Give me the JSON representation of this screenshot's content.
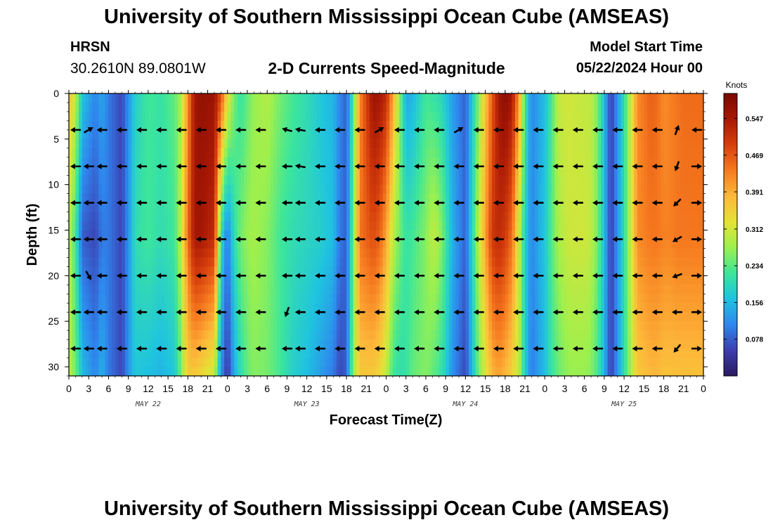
{
  "header": {
    "title": "University of Southern Mississippi Ocean Cube (AMSEAS)",
    "footer_title": "University of Southern Mississippi Ocean Cube (AMSEAS)",
    "station_code": "HRSN",
    "station_coords": "30.2610N  89.0801W",
    "plot_title": "2-D Currents Speed-Magnitude",
    "start_label": "Model Start Time",
    "start_value": "05/22/2024 Hour 00"
  },
  "colors": {
    "colormap": [
      "#2b1a5e",
      "#3c3eb0",
      "#2f86ee",
      "#1fc3e0",
      "#3de69a",
      "#9cf04e",
      "#e5e235",
      "#fdb83a",
      "#f67a1f",
      "#d63f0c",
      "#a81805",
      "#790900"
    ],
    "arrow": "#000000"
  },
  "chart_data": {
    "type": "heatmap",
    "title": "2-D Currents Speed-Magnitude",
    "xlabel": "Forecast Time(Z)",
    "ylabel": "Depth (ft)",
    "units": "Knots",
    "xlim": [
      0,
      96
    ],
    "ylim": [
      0,
      31
    ],
    "x_tick_values": [
      0,
      3,
      6,
      9,
      12,
      15,
      18,
      21,
      24,
      27,
      30,
      33,
      36,
      39,
      42,
      45,
      48,
      51,
      54,
      57,
      60,
      63,
      66,
      69,
      72,
      75,
      78,
      81,
      84,
      87,
      90,
      93,
      96
    ],
    "x_tick_labels": [
      "0",
      "3",
      "6",
      "9",
      "12",
      "15",
      "18",
      "21",
      "0",
      "3",
      "6",
      "9",
      "12",
      "15",
      "18",
      "21",
      "0",
      "3",
      "6",
      "9",
      "12",
      "15",
      "18",
      "21",
      "0",
      "3",
      "6",
      "9",
      "12",
      "15",
      "18",
      "21",
      "0"
    ],
    "day_labels": [
      {
        "hour": 12,
        "label": "MAY 22"
      },
      {
        "hour": 36,
        "label": "MAY 23"
      },
      {
        "hour": 60,
        "label": "MAY 24"
      },
      {
        "hour": 84,
        "label": "MAY 25"
      }
    ],
    "y_tick_values": [
      0,
      5,
      10,
      15,
      20,
      25,
      30
    ],
    "y_tick_labels": [
      "0",
      "5",
      "10",
      "15",
      "20",
      "25",
      "30"
    ],
    "colorbar": {
      "min": 0.0,
      "max": 0.6,
      "tick_values": [
        0.078,
        0.156,
        0.234,
        0.312,
        0.391,
        0.469,
        0.547
      ],
      "tick_labels": [
        "0.078",
        "0.156",
        "0.234",
        "0.312",
        "0.391",
        "0.469",
        "0.547"
      ]
    },
    "speed_profile": {
      "description": "Current speed (knots) by forecast hour at top / middle / bottom depth",
      "hours": [
        0,
        1,
        2,
        4,
        5,
        6,
        8,
        9,
        10,
        12,
        14,
        16,
        17,
        18,
        19,
        20,
        22,
        23,
        24,
        25,
        26,
        27,
        28,
        30,
        32,
        34,
        36,
        38,
        40,
        41,
        42,
        43,
        44,
        46,
        47,
        48,
        49,
        50,
        51,
        52,
        54,
        55,
        56,
        57,
        58,
        60,
        62,
        64,
        65,
        66,
        67,
        68,
        69,
        70,
        72,
        73,
        74,
        75,
        76,
        78,
        79,
        80,
        81,
        82,
        84,
        86,
        88,
        89,
        90,
        91,
        92,
        93,
        94,
        95,
        96
      ],
      "top": [
        0.37,
        0.3,
        0.17,
        0.11,
        0.14,
        0.1,
        0.06,
        0.12,
        0.18,
        0.22,
        0.21,
        0.24,
        0.28,
        0.42,
        0.55,
        0.57,
        0.56,
        0.48,
        0.34,
        0.25,
        0.21,
        0.24,
        0.27,
        0.29,
        0.25,
        0.22,
        0.2,
        0.17,
        0.15,
        0.11,
        0.08,
        0.22,
        0.42,
        0.56,
        0.55,
        0.52,
        0.4,
        0.27,
        0.14,
        0.15,
        0.22,
        0.21,
        0.2,
        0.17,
        0.13,
        0.08,
        0.26,
        0.46,
        0.55,
        0.58,
        0.55,
        0.42,
        0.22,
        0.11,
        0.16,
        0.22,
        0.3,
        0.31,
        0.31,
        0.3,
        0.3,
        0.25,
        0.16,
        0.05,
        0.2,
        0.42,
        0.46,
        0.45,
        0.42,
        0.43,
        0.44,
        0.45,
        0.45,
        0.45,
        0.45
      ],
      "mid": [
        0.3,
        0.22,
        0.08,
        0.06,
        0.1,
        0.1,
        0.06,
        0.12,
        0.2,
        0.22,
        0.2,
        0.22,
        0.3,
        0.45,
        0.55,
        0.55,
        0.52,
        0.2,
        0.1,
        0.2,
        0.25,
        0.27,
        0.28,
        0.26,
        0.22,
        0.2,
        0.19,
        0.18,
        0.16,
        0.1,
        0.08,
        0.24,
        0.44,
        0.48,
        0.46,
        0.4,
        0.3,
        0.25,
        0.21,
        0.22,
        0.26,
        0.3,
        0.28,
        0.22,
        0.15,
        0.08,
        0.3,
        0.5,
        0.52,
        0.5,
        0.45,
        0.32,
        0.18,
        0.11,
        0.17,
        0.23,
        0.28,
        0.3,
        0.31,
        0.31,
        0.3,
        0.25,
        0.16,
        0.05,
        0.2,
        0.42,
        0.44,
        0.44,
        0.43,
        0.43,
        0.44,
        0.44,
        0.44,
        0.44,
        0.44
      ],
      "bottom": [
        0.3,
        0.25,
        0.16,
        0.11,
        0.15,
        0.1,
        0.06,
        0.12,
        0.17,
        0.16,
        0.15,
        0.17,
        0.25,
        0.36,
        0.36,
        0.34,
        0.3,
        0.12,
        0.04,
        0.14,
        0.2,
        0.24,
        0.26,
        0.25,
        0.22,
        0.18,
        0.16,
        0.13,
        0.1,
        0.06,
        0.08,
        0.26,
        0.36,
        0.36,
        0.34,
        0.3,
        0.22,
        0.2,
        0.21,
        0.24,
        0.26,
        0.24,
        0.22,
        0.18,
        0.12,
        0.06,
        0.25,
        0.38,
        0.4,
        0.38,
        0.35,
        0.3,
        0.18,
        0.1,
        0.16,
        0.21,
        0.24,
        0.26,
        0.27,
        0.27,
        0.26,
        0.22,
        0.15,
        0.05,
        0.2,
        0.36,
        0.38,
        0.38,
        0.37,
        0.37,
        0.37,
        0.37,
        0.37,
        0.37,
        0.37
      ]
    },
    "vectors": {
      "description": "Current direction vectors (degrees, math convention; 180 = westward) at each forecast hour and depth",
      "depths": [
        4,
        8,
        12,
        16,
        20,
        24,
        28
      ],
      "hours": [
        1,
        3,
        5,
        8,
        11,
        14,
        17,
        20,
        23,
        26,
        29,
        33,
        35,
        38,
        41,
        44,
        47,
        50,
        53,
        56,
        59,
        62,
        65,
        68,
        71,
        74,
        77,
        80,
        83,
        86,
        89,
        92,
        95
      ],
      "angle_deg": [
        [
          180,
          30,
          180,
          180,
          180,
          180,
          180,
          180,
          180,
          180,
          180,
          165,
          170,
          180,
          180,
          180,
          30,
          180,
          180,
          180,
          30,
          180,
          180,
          180,
          180,
          180,
          180,
          180,
          180,
          180,
          180,
          70,
          180
        ],
        [
          180,
          180,
          180,
          180,
          180,
          180,
          180,
          180,
          180,
          180,
          180,
          180,
          170,
          180,
          180,
          180,
          180,
          180,
          180,
          180,
          180,
          180,
          180,
          180,
          180,
          180,
          180,
          180,
          180,
          180,
          180,
          250,
          0
        ],
        [
          180,
          180,
          180,
          180,
          180,
          180,
          180,
          180,
          180,
          180,
          180,
          180,
          180,
          180,
          180,
          180,
          180,
          180,
          180,
          180,
          180,
          180,
          180,
          180,
          180,
          180,
          180,
          180,
          180,
          180,
          180,
          225,
          0
        ],
        [
          180,
          180,
          180,
          180,
          180,
          180,
          180,
          180,
          180,
          180,
          180,
          180,
          180,
          180,
          180,
          180,
          180,
          180,
          180,
          180,
          180,
          180,
          180,
          180,
          180,
          180,
          180,
          180,
          180,
          180,
          180,
          210,
          0
        ],
        [
          180,
          300,
          180,
          180,
          180,
          180,
          180,
          180,
          180,
          180,
          180,
          180,
          180,
          180,
          180,
          180,
          180,
          180,
          180,
          180,
          180,
          180,
          180,
          180,
          180,
          180,
          180,
          180,
          180,
          180,
          180,
          200,
          0
        ],
        [
          180,
          180,
          180,
          180,
          180,
          180,
          180,
          180,
          180,
          180,
          180,
          250,
          180,
          180,
          180,
          180,
          180,
          180,
          180,
          180,
          180,
          180,
          180,
          180,
          180,
          180,
          180,
          180,
          180,
          180,
          180,
          180,
          0
        ],
        [
          180,
          180,
          180,
          180,
          180,
          180,
          180,
          180,
          180,
          180,
          180,
          180,
          180,
          180,
          180,
          180,
          180,
          180,
          180,
          180,
          180,
          180,
          180,
          180,
          180,
          180,
          180,
          180,
          180,
          180,
          180,
          230,
          0
        ]
      ]
    }
  }
}
